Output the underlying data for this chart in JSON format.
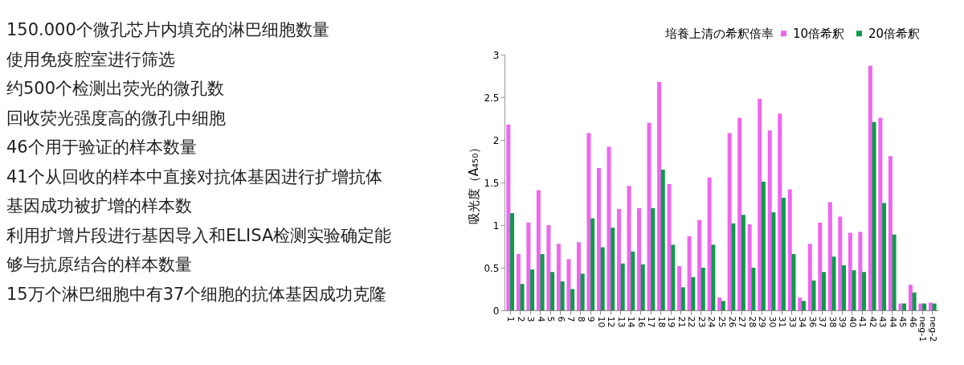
{
  "chart_data": {
    "type": "bar",
    "ylabel": "吸光度（A₄₅₀）",
    "legend_title": "培養上清の希釈倍率",
    "legend": "top right",
    "grid": false,
    "categories": [
      "1",
      "2",
      "3",
      "4",
      "5",
      "6",
      "7",
      "8",
      "9",
      "10",
      "12",
      "13",
      "14",
      "16",
      "17",
      "18",
      "19",
      "21",
      "22",
      "23",
      "24",
      "25",
      "26",
      "27",
      "28",
      "29",
      "30",
      "31",
      "33",
      "34",
      "36",
      "37",
      "38",
      "39",
      "40",
      "41",
      "42",
      "43",
      "44",
      "45",
      "46",
      "neg-1",
      "neg-2"
    ],
    "series": [
      {
        "name": "10倍希釈",
        "color": "#ee66ee",
        "values": [
          2.18,
          0.66,
          1.03,
          1.41,
          1.0,
          0.78,
          0.6,
          0.8,
          2.08,
          1.67,
          1.92,
          1.19,
          1.46,
          1.2,
          2.2,
          2.68,
          1.48,
          0.52,
          0.87,
          1.06,
          1.56,
          0.15,
          2.08,
          2.26,
          1.01,
          2.48,
          2.11,
          2.31,
          1.42,
          0.15,
          0.78,
          1.03,
          1.27,
          1.1,
          0.91,
          0.92,
          2.87,
          2.26,
          1.81,
          0.08,
          0.3,
          0.08,
          0.09
        ]
      },
      {
        "name": "20倍希釈",
        "color": "#109a4c",
        "values": [
          1.14,
          0.31,
          0.48,
          0.66,
          0.45,
          0.34,
          0.25,
          0.43,
          1.08,
          0.74,
          0.97,
          0.55,
          0.69,
          0.54,
          1.2,
          1.65,
          0.77,
          0.27,
          0.39,
          0.5,
          0.77,
          0.11,
          1.02,
          1.12,
          0.5,
          1.51,
          1.15,
          1.32,
          0.66,
          0.11,
          0.35,
          0.45,
          0.63,
          0.53,
          0.47,
          0.45,
          2.21,
          1.26,
          0.89,
          0.08,
          0.21,
          0.08,
          0.08
        ]
      }
    ],
    "ylim": [
      0,
      3
    ],
    "yticks": [
      0,
      0.5,
      1,
      1.5,
      2,
      2.5,
      3
    ],
    "annotations": [
      "150.000个微孔芯片内填充的淋巴细胞数量",
      "使用免疫腔室进行筛选",
      "约500个检测出荧光的微孔数",
      "回收荧光强度高的微孔中细胞",
      "46个用于验证的样本数量",
      "41个从回收的样本中直接对抗体基因进行扩增抗体",
      "基因成功被扩增的样本数",
      "利用扩增片段进行基因导入和ELISA检测实验确定能",
      "够与抗原结合的样本数量",
      "15万个淋巴细胞中有37个细胞的抗体基因成功克隆"
    ]
  }
}
